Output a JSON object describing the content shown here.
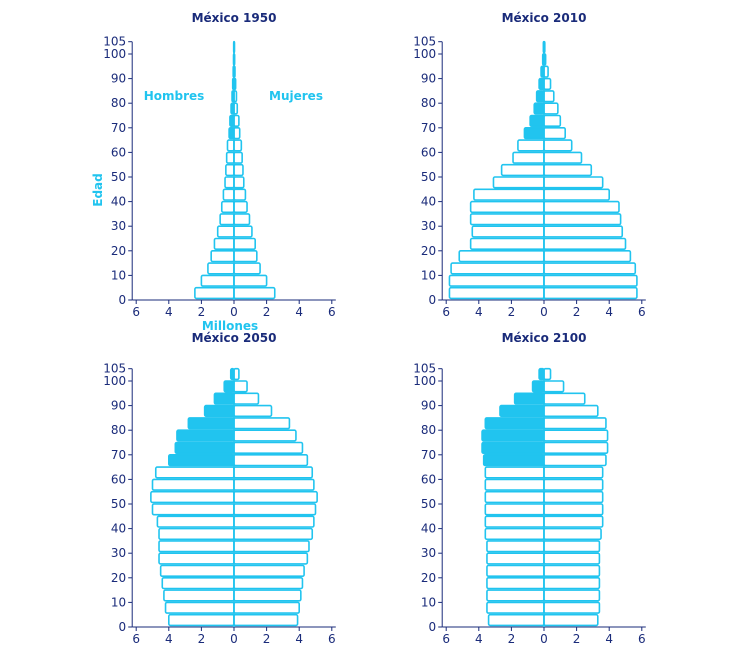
{
  "chart_data": [
    {
      "type": "bar",
      "title": "México 1950",
      "xlabel": "Millones",
      "ylabel": "Edad",
      "left_label": "Hombres",
      "right_label": "Mujeres",
      "xlim": [
        -6,
        6
      ],
      "ylim": [
        0,
        105
      ],
      "xticks": [
        "6",
        "4",
        "2",
        "0",
        "2",
        "4",
        "6"
      ],
      "yticks": [
        "0",
        "10",
        "20",
        "30",
        "40",
        "50",
        "60",
        "70",
        "80",
        "90",
        "100",
        "105"
      ],
      "age_groups": [
        0,
        5,
        10,
        15,
        20,
        25,
        30,
        35,
        40,
        45,
        50,
        55,
        60,
        65,
        70,
        75,
        80,
        85,
        90,
        95,
        100
      ],
      "series": [
        {
          "name": "Hombres",
          "values": [
            2.4,
            2.0,
            1.6,
            1.4,
            1.2,
            1.0,
            0.85,
            0.75,
            0.65,
            0.55,
            0.5,
            0.45,
            0.4,
            0.3,
            0.25,
            0.18,
            0.12,
            0.08,
            0.05,
            0.03,
            0.02
          ]
        },
        {
          "name": "Mujeres",
          "values": [
            2.5,
            2.0,
            1.6,
            1.4,
            1.3,
            1.1,
            0.95,
            0.8,
            0.7,
            0.6,
            0.55,
            0.5,
            0.45,
            0.35,
            0.3,
            0.2,
            0.15,
            0.1,
            0.06,
            0.04,
            0.02
          ]
        }
      ]
    },
    {
      "type": "bar",
      "title": "México 2010",
      "xlim": [
        -6,
        6
      ],
      "ylim": [
        0,
        105
      ],
      "xticks": [
        "6",
        "4",
        "2",
        "0",
        "2",
        "4",
        "6"
      ],
      "yticks": [
        "0",
        "10",
        "20",
        "30",
        "40",
        "50",
        "60",
        "70",
        "80",
        "90",
        "100",
        "105"
      ],
      "age_groups": [
        0,
        5,
        10,
        15,
        20,
        25,
        30,
        35,
        40,
        45,
        50,
        55,
        60,
        65,
        70,
        75,
        80,
        85,
        90,
        95,
        100
      ],
      "series": [
        {
          "name": "Hombres",
          "values": [
            5.8,
            5.8,
            5.7,
            5.2,
            4.5,
            4.4,
            4.5,
            4.5,
            4.3,
            3.1,
            2.6,
            1.9,
            1.6,
            1.2,
            0.85,
            0.6,
            0.45,
            0.3,
            0.18,
            0.08,
            0.04
          ]
        },
        {
          "name": "Mujeres",
          "values": [
            5.7,
            5.7,
            5.6,
            5.3,
            5.0,
            4.8,
            4.7,
            4.6,
            4.0,
            3.6,
            2.9,
            2.3,
            1.7,
            1.3,
            1.0,
            0.85,
            0.6,
            0.4,
            0.25,
            0.1,
            0.05
          ]
        }
      ]
    },
    {
      "type": "bar",
      "title": "México 2050",
      "xlim": [
        -6,
        6
      ],
      "ylim": [
        0,
        105
      ],
      "xticks": [
        "6",
        "4",
        "2",
        "0",
        "2",
        "4",
        "6"
      ],
      "yticks": [
        "0",
        "10",
        "20",
        "30",
        "40",
        "50",
        "60",
        "70",
        "80",
        "90",
        "100",
        "105"
      ],
      "age_groups": [
        0,
        5,
        10,
        15,
        20,
        25,
        30,
        35,
        40,
        45,
        50,
        55,
        60,
        65,
        70,
        75,
        80,
        85,
        90,
        95,
        100
      ],
      "series": [
        {
          "name": "Hombres",
          "values": [
            4.0,
            4.2,
            4.3,
            4.4,
            4.5,
            4.6,
            4.6,
            4.6,
            4.7,
            5.0,
            5.1,
            5.0,
            4.8,
            4.0,
            3.6,
            3.5,
            2.8,
            1.8,
            1.2,
            0.6,
            0.2
          ]
        },
        {
          "name": "Mujeres",
          "values": [
            3.9,
            4.0,
            4.1,
            4.2,
            4.3,
            4.5,
            4.6,
            4.8,
            4.9,
            5.0,
            5.1,
            4.9,
            4.8,
            4.5,
            4.2,
            3.8,
            3.4,
            2.3,
            1.5,
            0.8,
            0.3
          ]
        }
      ]
    },
    {
      "type": "bar",
      "title": "México 2100",
      "xlim": [
        -6,
        6
      ],
      "ylim": [
        0,
        105
      ],
      "xticks": [
        "6",
        "4",
        "2",
        "0",
        "2",
        "4",
        "6"
      ],
      "yticks": [
        "0",
        "10",
        "20",
        "30",
        "40",
        "50",
        "60",
        "70",
        "80",
        "90",
        "100",
        "105"
      ],
      "age_groups": [
        0,
        5,
        10,
        15,
        20,
        25,
        30,
        35,
        40,
        45,
        50,
        55,
        60,
        65,
        70,
        75,
        80,
        85,
        90,
        95,
        100
      ],
      "series": [
        {
          "name": "Hombres",
          "values": [
            3.4,
            3.5,
            3.5,
            3.5,
            3.5,
            3.5,
            3.5,
            3.6,
            3.6,
            3.6,
            3.6,
            3.6,
            3.6,
            3.7,
            3.8,
            3.8,
            3.6,
            2.7,
            1.8,
            0.7,
            0.3
          ]
        },
        {
          "name": "Mujeres",
          "values": [
            3.3,
            3.4,
            3.4,
            3.4,
            3.4,
            3.4,
            3.4,
            3.5,
            3.6,
            3.6,
            3.6,
            3.6,
            3.6,
            3.8,
            3.9,
            3.9,
            3.8,
            3.3,
            2.5,
            1.2,
            0.4
          ]
        }
      ]
    }
  ]
}
